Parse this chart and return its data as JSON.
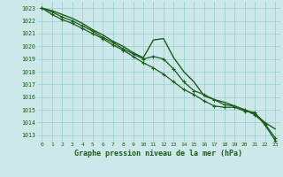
{
  "title": "Graphe pression niveau de la mer (hPa)",
  "bg_color": "#cce8e8",
  "grid_color": "#99cccc",
  "line_color": "#1a5c1a",
  "xlim": [
    -0.5,
    23.5
  ],
  "ylim": [
    1012.5,
    1023.5
  ],
  "xtick_labels": [
    "0",
    "1",
    "2",
    "3",
    "4",
    "5",
    "6",
    "7",
    "8",
    "9",
    "10",
    "11",
    "12",
    "13",
    "14",
    "15",
    "16",
    "17",
    "18",
    "19",
    "20",
    "21",
    "22",
    "23"
  ],
  "ytick_values": [
    1013,
    1014,
    1015,
    1016,
    1017,
    1018,
    1019,
    1020,
    1021,
    1022,
    1023
  ],
  "series": [
    {
      "y": [
        1023.0,
        1022.8,
        1022.5,
        1022.2,
        1021.8,
        1021.3,
        1020.9,
        1020.4,
        1020.0,
        1019.5,
        1019.1,
        1020.5,
        1020.6,
        1019.1,
        1018.0,
        1017.2,
        1016.1,
        1015.8,
        1015.6,
        1015.3,
        1015.0,
        1014.7,
        1014.0,
        1013.5
      ],
      "marker": false,
      "lw": 1.0
    },
    {
      "y": [
        1023.0,
        1022.7,
        1022.3,
        1022.0,
        1021.6,
        1021.2,
        1020.7,
        1020.3,
        1019.8,
        1019.4,
        1019.0,
        1019.2,
        1019.0,
        1018.2,
        1017.2,
        1016.5,
        1016.2,
        1015.8,
        1015.4,
        1015.3,
        1015.0,
        1014.6,
        1013.9,
        1012.8
      ],
      "marker": true,
      "lw": 0.9
    },
    {
      "y": [
        1023.0,
        1022.5,
        1022.1,
        1021.8,
        1021.4,
        1021.0,
        1020.6,
        1020.1,
        1019.7,
        1019.2,
        1018.7,
        1018.3,
        1017.8,
        1017.2,
        1016.6,
        1016.2,
        1015.7,
        1015.3,
        1015.2,
        1015.2,
        1014.9,
        1014.8,
        1013.8,
        1012.6
      ],
      "marker": true,
      "lw": 0.9
    }
  ]
}
